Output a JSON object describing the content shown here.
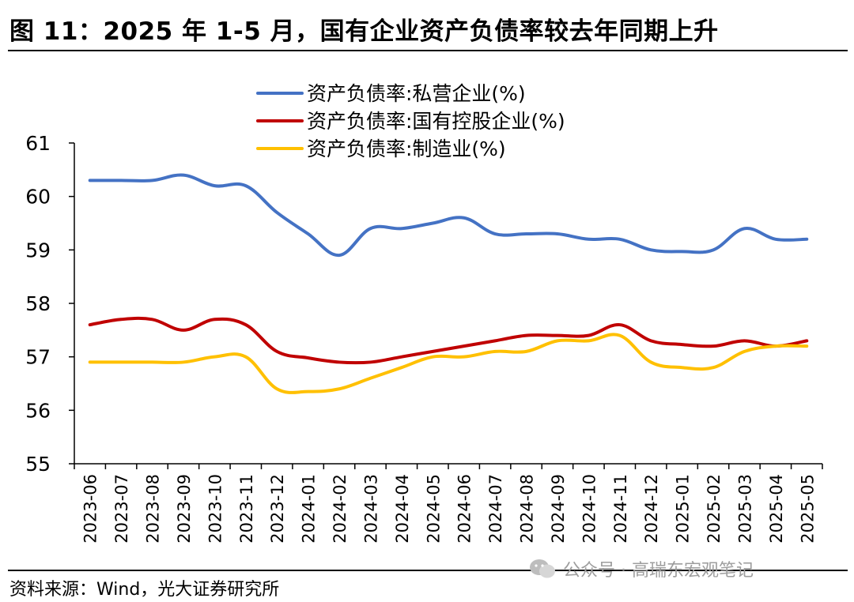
{
  "title": "图 11：2025 年 1-5 月，国有企业资产负债率较去年同期上升",
  "source": "资料来源：Wind，光大证券研究所",
  "watermark": "公众号 · 高瑞东宏观笔记",
  "chart_data": {
    "type": "line",
    "title": "",
    "xlabel": "",
    "ylabel": "",
    "ylim": [
      55,
      61
    ],
    "yticks": [
      55,
      56,
      57,
      58,
      59,
      60,
      61
    ],
    "legend_position": "top-center",
    "grid": false,
    "categories": [
      "2023-06",
      "2023-07",
      "2023-08",
      "2023-09",
      "2023-10",
      "2023-11",
      "2023-12",
      "2024-01",
      "2024-02",
      "2024-03",
      "2024-04",
      "2024-05",
      "2024-06",
      "2024-07",
      "2024-08",
      "2024-09",
      "2024-10",
      "2024-11",
      "2024-12",
      "2025-01",
      "2025-02",
      "2025-03",
      "2025-04",
      "2025-05"
    ],
    "series": [
      {
        "name": "资产负债率:私营企业(%)",
        "color": "#4472C4",
        "values": [
          60.3,
          60.3,
          60.3,
          60.4,
          60.2,
          60.2,
          59.7,
          59.3,
          58.9,
          59.4,
          59.4,
          59.5,
          59.6,
          59.3,
          59.3,
          59.3,
          59.2,
          59.2,
          59.0,
          58.97,
          59.0,
          59.4,
          59.2,
          59.2
        ]
      },
      {
        "name": "资产负债率:国有控股企业(%)",
        "color": "#C00000",
        "values": [
          57.6,
          57.7,
          57.7,
          57.5,
          57.7,
          57.6,
          57.1,
          56.98,
          56.9,
          56.9,
          57.0,
          57.1,
          57.2,
          57.3,
          57.4,
          57.4,
          57.4,
          57.6,
          57.3,
          57.23,
          57.2,
          57.3,
          57.2,
          57.3
        ]
      },
      {
        "name": "资产负债率:制造业(%)",
        "color": "#FFC000",
        "values": [
          56.9,
          56.9,
          56.9,
          56.9,
          57.0,
          57.0,
          56.4,
          56.35,
          56.4,
          56.6,
          56.8,
          57.0,
          57.0,
          57.1,
          57.1,
          57.3,
          57.3,
          57.4,
          56.9,
          56.8,
          56.8,
          57.1,
          57.2,
          57.2
        ]
      }
    ]
  }
}
